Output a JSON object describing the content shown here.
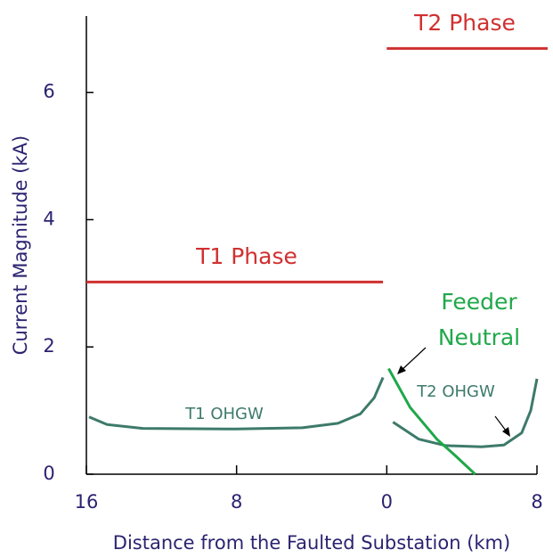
{
  "chart_data": {
    "type": "line",
    "xlabel": "Distance from the Faulted Substation (km)",
    "ylabel": "Current Magnitude (kA)",
    "xlim": [
      -16,
      8
    ],
    "ylim": [
      0,
      7.2
    ],
    "xticks": [
      {
        "value": -16,
        "label": "16"
      },
      {
        "value": -8,
        "label": "8"
      },
      0,
      {
        "value": 8,
        "label": "8"
      }
    ],
    "yticks": [
      0,
      2,
      4,
      6
    ],
    "series": [
      {
        "name": "T1 Phase",
        "color": "#d03030",
        "x": [
          -16,
          -0.2
        ],
        "values": [
          3.02,
          3.02
        ]
      },
      {
        "name": "T2 Phase",
        "color": "#d03030",
        "x": [
          0,
          8.57
        ],
        "values": [
          6.69,
          6.69
        ]
      },
      {
        "name": "T1 OHGW",
        "color": "#3d7a6a",
        "x": [
          -15.86,
          -14.9,
          -13,
          -8,
          -4.5,
          -2.6,
          -1.4,
          -0.67,
          -0.2
        ],
        "values": [
          0.9,
          0.78,
          0.72,
          0.71,
          0.73,
          0.8,
          0.95,
          1.2,
          1.52
        ]
      },
      {
        "name": "T2 OHGW",
        "color": "#3d7a6a",
        "x": [
          0.33,
          1.71,
          3.14,
          5.05,
          6.24,
          7.19,
          7.67,
          8
        ],
        "values": [
          0.82,
          0.55,
          0.45,
          0.43,
          0.46,
          0.65,
          1.0,
          1.5
        ]
      },
      {
        "name": "Feeder Neutral",
        "color": "#1fa84a",
        "x": [
          0.1,
          1.24,
          2.67,
          3.62,
          4.71
        ],
        "values": [
          1.66,
          1.05,
          0.55,
          0.3,
          0.0
        ]
      }
    ]
  }
}
